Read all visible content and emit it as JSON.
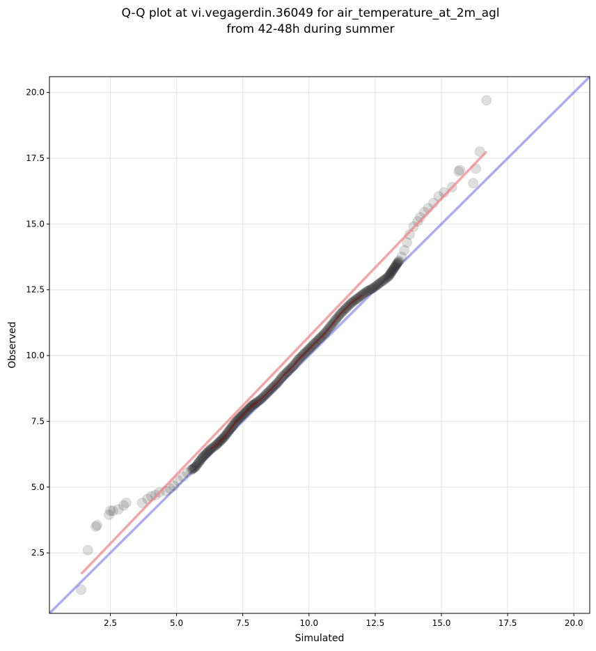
{
  "title_line1": "Q-Q plot at vi.vegagerdin.36049 for air_temperature_at_2m_agl",
  "title_line2": "from 42-48h during summer",
  "chart_data": {
    "type": "scatter",
    "title": "Q-Q plot at vi.vegagerdin.36049 for air_temperature_at_2m_agl\nfrom 42-48h during summer",
    "xlabel": "Simulated",
    "ylabel": "Observed",
    "xlim": [
      0.2,
      20.6
    ],
    "ylim": [
      0.2,
      20.6
    ],
    "xticks": [
      2.5,
      5.0,
      7.5,
      10.0,
      12.5,
      15.0,
      17.5,
      20.0
    ],
    "yticks": [
      2.5,
      5.0,
      7.5,
      10.0,
      12.5,
      15.0,
      17.5,
      20.0
    ],
    "xtick_labels": [
      "2.5",
      "5.0",
      "7.5",
      "10.0",
      "12.5",
      "15.0",
      "17.5",
      "20.0"
    ],
    "ytick_labels": [
      "2.5",
      "5.0",
      "7.5",
      "10.0",
      "12.5",
      "15.0",
      "17.5",
      "20.0"
    ],
    "grid": true,
    "colors": {
      "points": "#333333",
      "fit_line": "#f08080",
      "identity_line": "#8080f0",
      "dense_trace": "#8b0000"
    },
    "fit_line": {
      "x": [
        1.4,
        16.7
      ],
      "y": [
        1.7,
        17.75
      ]
    },
    "identity_line": {
      "x": [
        0.2,
        20.6
      ],
      "y": [
        0.2,
        20.6
      ]
    },
    "points": {
      "x": [
        1.4,
        1.65,
        1.95,
        2.0,
        2.45,
        2.5,
        2.6,
        2.8,
        3.0,
        3.1,
        3.7,
        3.9,
        4.05,
        4.2,
        4.35,
        4.6,
        4.75,
        4.9,
        5.05,
        5.25,
        5.4,
        5.55,
        5.7,
        5.85,
        6.0,
        6.15,
        6.3,
        6.5,
        6.65,
        6.8,
        6.95,
        7.1,
        7.25,
        7.4,
        7.55,
        7.7,
        7.85,
        8.0,
        8.2,
        8.4,
        8.6,
        8.8,
        9.0,
        9.2,
        9.4,
        9.6,
        9.8,
        10.0,
        10.2,
        10.4,
        10.6,
        10.8,
        11.0,
        11.2,
        11.4,
        11.6,
        11.8,
        12.0,
        12.2,
        12.4,
        12.6,
        12.8,
        13.0,
        13.1,
        13.2,
        13.3,
        13.4,
        13.5,
        13.6,
        13.7,
        13.8,
        13.95,
        14.1,
        14.2,
        14.35,
        14.5,
        14.7,
        14.9,
        15.1,
        15.4,
        15.65,
        15.7,
        16.2,
        16.3,
        16.45,
        16.7
      ],
      "y": [
        1.1,
        2.6,
        3.5,
        3.55,
        3.95,
        4.1,
        4.1,
        4.15,
        4.3,
        4.4,
        4.4,
        4.55,
        4.65,
        4.7,
        4.8,
        4.85,
        4.95,
        5.05,
        5.25,
        5.4,
        5.55,
        5.65,
        5.75,
        5.95,
        6.15,
        6.3,
        6.45,
        6.6,
        6.75,
        6.9,
        7.1,
        7.3,
        7.5,
        7.65,
        7.8,
        7.95,
        8.1,
        8.2,
        8.35,
        8.55,
        8.75,
        8.95,
        9.2,
        9.4,
        9.6,
        9.85,
        10.05,
        10.25,
        10.45,
        10.65,
        10.85,
        11.1,
        11.35,
        11.6,
        11.8,
        12.0,
        12.15,
        12.3,
        12.45,
        12.55,
        12.7,
        12.85,
        13.0,
        13.15,
        13.3,
        13.45,
        13.6,
        13.75,
        14.0,
        14.3,
        14.6,
        14.9,
        15.1,
        15.25,
        15.45,
        15.6,
        15.8,
        16.05,
        16.2,
        16.4,
        17.0,
        17.05,
        16.55,
        17.1,
        17.75,
        19.7
      ]
    }
  }
}
